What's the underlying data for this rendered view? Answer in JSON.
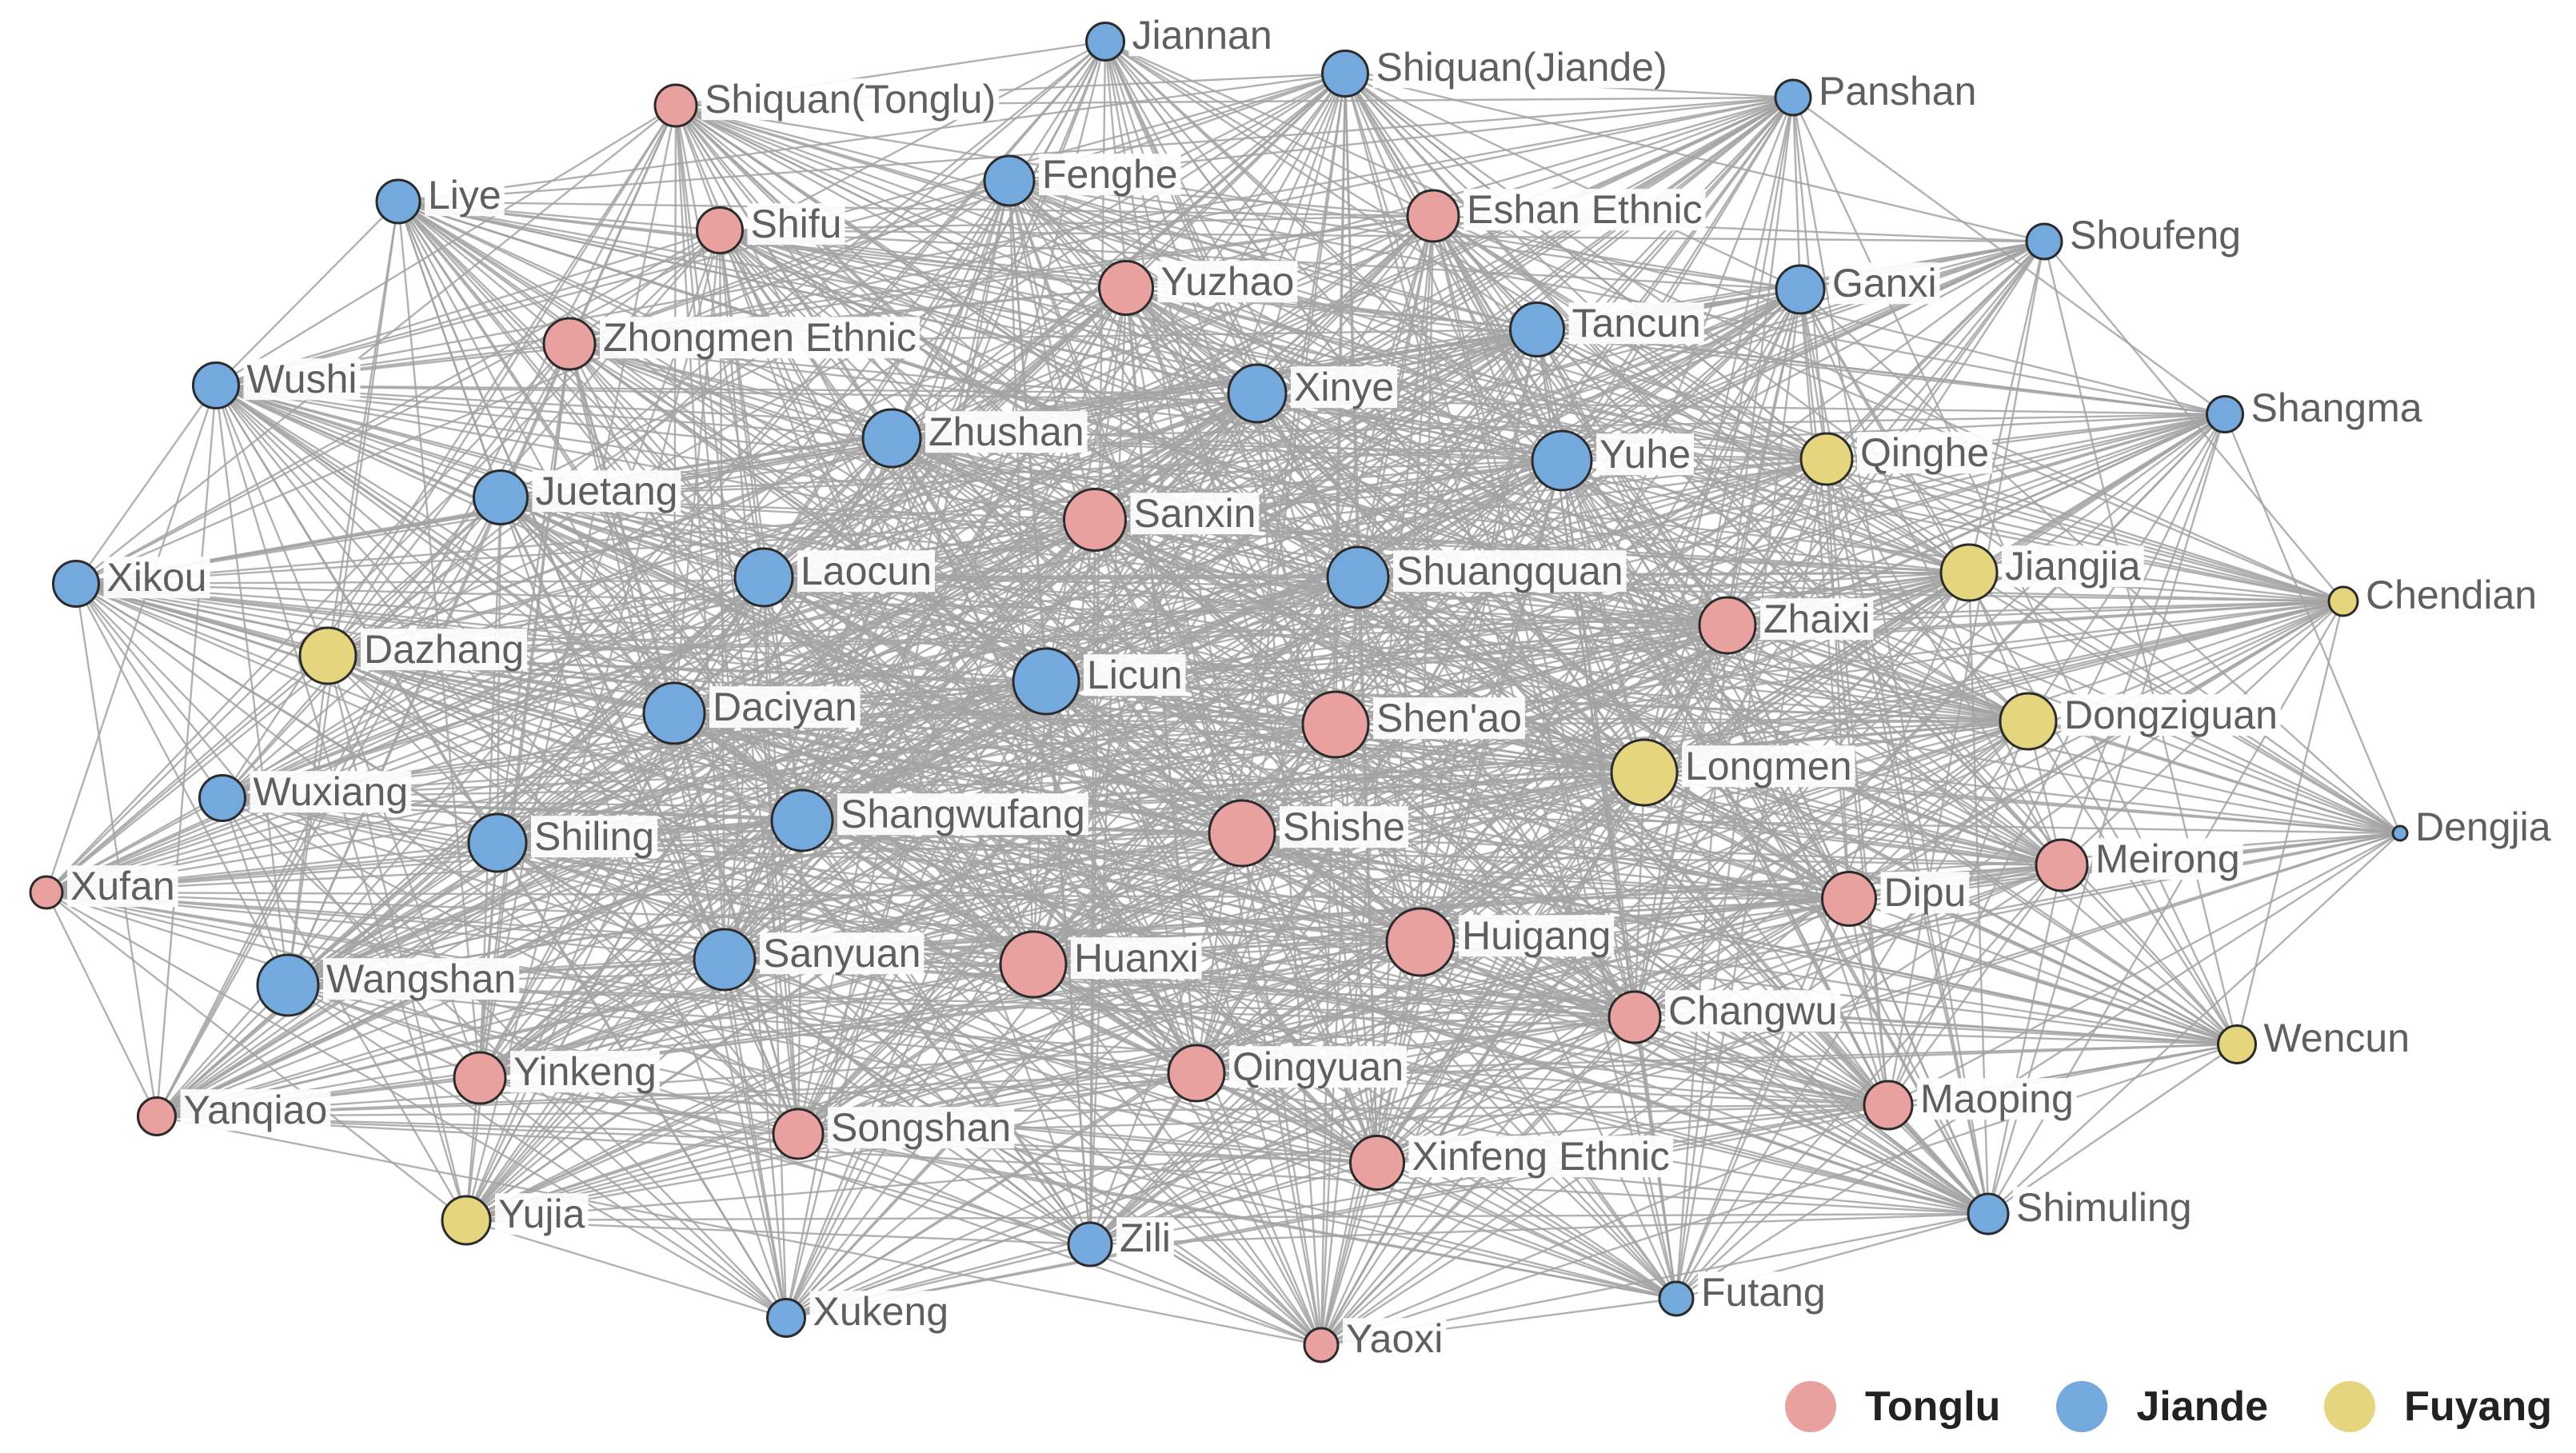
{
  "chart_data": {
    "type": "network",
    "colors": {
      "Tonglu": "#e8a19e",
      "Jiande": "#73a9dd",
      "Fuyang": "#e5d67d"
    },
    "legend": {
      "placement": "bottom-right",
      "entries": [
        "Tonglu",
        "Jiande",
        "Fuyang"
      ]
    },
    "nodes": [
      {
        "name": "Jiannan",
        "group": "Jiande",
        "weight": 0.35
      },
      {
        "name": "Shiquan(Jiande)",
        "group": "Jiande",
        "weight": 0.45
      },
      {
        "name": "Shiquan(Tonglu)",
        "group": "Tonglu",
        "weight": 0.4
      },
      {
        "name": "Panshan",
        "group": "Jiande",
        "weight": 0.32
      },
      {
        "name": "Liye",
        "group": "Jiande",
        "weight": 0.42
      },
      {
        "name": "Fenghe",
        "group": "Jiande",
        "weight": 0.5
      },
      {
        "name": "Shifu",
        "group": "Tonglu",
        "weight": 0.45
      },
      {
        "name": "Eshan Ethnic",
        "group": "Tonglu",
        "weight": 0.52
      },
      {
        "name": "Shoufeng",
        "group": "Jiande",
        "weight": 0.32
      },
      {
        "name": "Yuzhao",
        "group": "Tonglu",
        "weight": 0.55
      },
      {
        "name": "Ganxi",
        "group": "Jiande",
        "weight": 0.48
      },
      {
        "name": "Zhongmen Ethnic",
        "group": "Tonglu",
        "weight": 0.52
      },
      {
        "name": "Tancun",
        "group": "Jiande",
        "weight": 0.55
      },
      {
        "name": "Wushi",
        "group": "Jiande",
        "weight": 0.45
      },
      {
        "name": "Xinye",
        "group": "Jiande",
        "weight": 0.6
      },
      {
        "name": "Shangma",
        "group": "Jiande",
        "weight": 0.33
      },
      {
        "name": "Zhushan",
        "group": "Jiande",
        "weight": 0.6
      },
      {
        "name": "Yuhe",
        "group": "Jiande",
        "weight": 0.62
      },
      {
        "name": "Qinghe",
        "group": "Fuyang",
        "weight": 0.52
      },
      {
        "name": "Juetang",
        "group": "Jiande",
        "weight": 0.55
      },
      {
        "name": "Sanxin",
        "group": "Tonglu",
        "weight": 0.65
      },
      {
        "name": "Jiangjia",
        "group": "Fuyang",
        "weight": 0.58
      },
      {
        "name": "Xikou",
        "group": "Jiande",
        "weight": 0.45
      },
      {
        "name": "Laocun",
        "group": "Jiande",
        "weight": 0.6
      },
      {
        "name": "Shuangquan",
        "group": "Jiande",
        "weight": 0.64
      },
      {
        "name": "Chendian",
        "group": "Fuyang",
        "weight": 0.24
      },
      {
        "name": "Zhaixi",
        "group": "Tonglu",
        "weight": 0.58
      },
      {
        "name": "Dazhang",
        "group": "Fuyang",
        "weight": 0.58
      },
      {
        "name": "Licun",
        "group": "Jiande",
        "weight": 0.7
      },
      {
        "name": "Shen'ao",
        "group": "Tonglu",
        "weight": 0.7
      },
      {
        "name": "Daciyan",
        "group": "Jiande",
        "weight": 0.64
      },
      {
        "name": "Dongziguan",
        "group": "Fuyang",
        "weight": 0.58
      },
      {
        "name": "Longmen",
        "group": "Fuyang",
        "weight": 0.7
      },
      {
        "name": "Wuxiang",
        "group": "Jiande",
        "weight": 0.45
      },
      {
        "name": "Shangwufang",
        "group": "Jiande",
        "weight": 0.64
      },
      {
        "name": "Shishe",
        "group": "Tonglu",
        "weight": 0.7
      },
      {
        "name": "Dengjia",
        "group": "Jiande",
        "weight": 0.06
      },
      {
        "name": "Shiling",
        "group": "Jiande",
        "weight": 0.6
      },
      {
        "name": "Xufan",
        "group": "Tonglu",
        "weight": 0.28
      },
      {
        "name": "Meirong",
        "group": "Tonglu",
        "weight": 0.52
      },
      {
        "name": "Dipu",
        "group": "Tonglu",
        "weight": 0.55
      },
      {
        "name": "Sanyuan",
        "group": "Jiande",
        "weight": 0.64
      },
      {
        "name": "Huanxi",
        "group": "Tonglu",
        "weight": 0.7
      },
      {
        "name": "Huigang",
        "group": "Tonglu",
        "weight": 0.72
      },
      {
        "name": "Wangshan",
        "group": "Jiande",
        "weight": 0.64
      },
      {
        "name": "Changwu",
        "group": "Tonglu",
        "weight": 0.52
      },
      {
        "name": "Wencun",
        "group": "Fuyang",
        "weight": 0.35
      },
      {
        "name": "Yinkeng",
        "group": "Tonglu",
        "weight": 0.52
      },
      {
        "name": "Qingyuan",
        "group": "Tonglu",
        "weight": 0.58
      },
      {
        "name": "Maoping",
        "group": "Tonglu",
        "weight": 0.48
      },
      {
        "name": "Yanqiao",
        "group": "Tonglu",
        "weight": 0.35
      },
      {
        "name": "Songshan",
        "group": "Tonglu",
        "weight": 0.5
      },
      {
        "name": "Xinfeng Ethnic",
        "group": "Tonglu",
        "weight": 0.55
      },
      {
        "name": "Shimuling",
        "group": "Jiande",
        "weight": 0.38
      },
      {
        "name": "Yujia",
        "group": "Fuyang",
        "weight": 0.48
      },
      {
        "name": "Zili",
        "group": "Jiande",
        "weight": 0.42
      },
      {
        "name": "Futang",
        "group": "Jiande",
        "weight": 0.3
      },
      {
        "name": "Xukeng",
        "group": "Jiande",
        "weight": 0.35
      },
      {
        "name": "Yaoxi",
        "group": "Tonglu",
        "weight": 0.3
      }
    ]
  }
}
